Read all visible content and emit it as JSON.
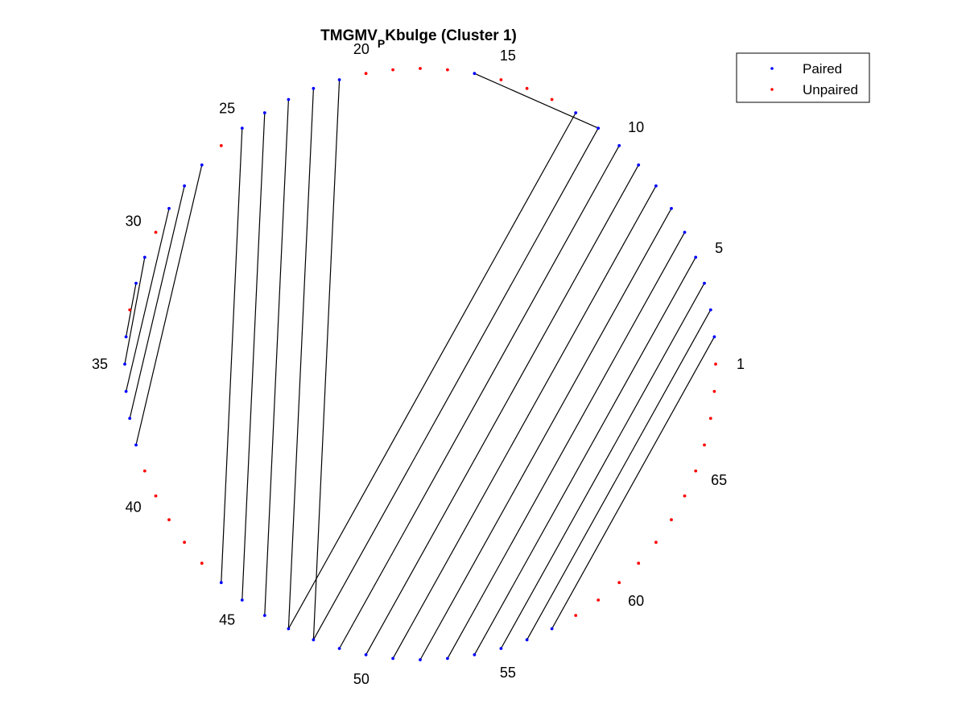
{
  "chart_data": {
    "type": "arc-diagram",
    "title": {
      "main": "TMGMV",
      "subscript": "P",
      "rest": "Kbulge (Cluster 1)"
    },
    "n_positions": 68,
    "index_labels": [
      "1",
      "5",
      "10",
      "15",
      "20",
      "25",
      "30",
      "35",
      "40",
      "45",
      "50",
      "55",
      "60",
      "65"
    ],
    "paired_positions": [
      2,
      3,
      4,
      5,
      6,
      7,
      8,
      9,
      10,
      11,
      12,
      16,
      21,
      22,
      23,
      24,
      25,
      27,
      28,
      29,
      31,
      32,
      34,
      35,
      36,
      37,
      38,
      44,
      45,
      46,
      47,
      48,
      49,
      50,
      51,
      52,
      53,
      54,
      55,
      56,
      57
    ],
    "pairs": [
      [
        2,
        57
      ],
      [
        3,
        56
      ],
      [
        4,
        55
      ],
      [
        5,
        54
      ],
      [
        6,
        53
      ],
      [
        7,
        52
      ],
      [
        8,
        51
      ],
      [
        9,
        50
      ],
      [
        10,
        49
      ],
      [
        11,
        48
      ],
      [
        12,
        47
      ],
      [
        16,
        11
      ],
      [
        21,
        48
      ],
      [
        22,
        47
      ],
      [
        23,
        46
      ],
      [
        24,
        45
      ],
      [
        25,
        44
      ],
      [
        27,
        38
      ],
      [
        28,
        37
      ],
      [
        29,
        36
      ],
      [
        31,
        35
      ],
      [
        32,
        34
      ]
    ],
    "legend": {
      "position": "top-right",
      "entries": [
        {
          "label": "Paired",
          "color": "#0000ff"
        },
        {
          "label": "Unpaired",
          "color": "#ff0000"
        }
      ]
    },
    "colors": {
      "paired": "#0000ff",
      "unpaired": "#ff0000",
      "link": "#000000"
    }
  }
}
